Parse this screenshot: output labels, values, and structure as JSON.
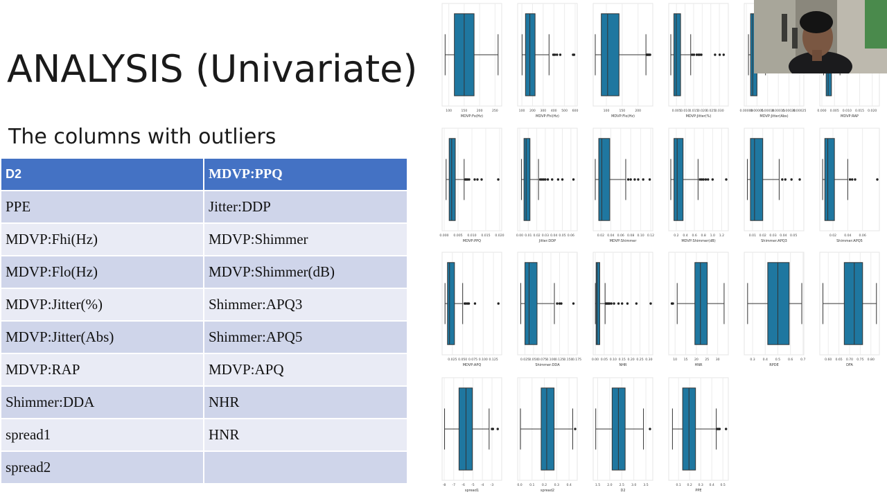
{
  "slide": {
    "title": "ANALYSIS (Univariate)",
    "subtitle": "The columns with outliers"
  },
  "table": {
    "headers": [
      "D2",
      "MDVP:PPQ"
    ],
    "rows": [
      [
        "PPE",
        "Jitter:DDP"
      ],
      [
        "MDVP:Fhi(Hz)",
        "MDVP:Shimmer"
      ],
      [
        "MDVP:Flo(Hz)",
        "MDVP:Shimmer(dB)"
      ],
      [
        "MDVP:Jitter(%)",
        "Shimmer:APQ3"
      ],
      [
        "MDVP:Jitter(Abs)",
        "Shimmer:APQ5"
      ],
      [
        "MDVP:RAP",
        "MDVP:APQ"
      ],
      [
        "Shimmer:DDA",
        "NHR"
      ],
      [
        "spread1",
        "HNR"
      ],
      [
        "spread2",
        ""
      ]
    ]
  },
  "colors": {
    "header_bg": "#4472c4",
    "row_odd": "#cfd5ea",
    "row_even": "#e9ebf5",
    "box_fill": "#1f77a0"
  },
  "chart_data": {
    "type": "boxplot-grid",
    "plots": [
      {
        "label": "MDVP:Fo(Hz)",
        "ticks": [
          "100",
          "150",
          "200",
          "250"
        ],
        "range": [
          85,
          265
        ],
        "q1": 118,
        "med": 150,
        "q3": 182,
        "wlo": 88,
        "whi": 260,
        "outliers": []
      },
      {
        "label": "MDVP:Fhi(Hz)",
        "ticks": [
          "100",
          "200",
          "300",
          "400",
          "500",
          "600"
        ],
        "range": [
          80,
          600
        ],
        "q1": 134,
        "med": 175,
        "q3": 224,
        "wlo": 102,
        "whi": 355,
        "outliers": [
          395,
          410,
          430,
          460,
          580,
          590
        ]
      },
      {
        "label": "MDVP:Flo(Hz)",
        "ticks": [
          "100",
          "150",
          "200"
        ],
        "range": [
          65,
          240
        ],
        "q1": 84,
        "med": 104,
        "q3": 140,
        "wlo": 65,
        "whi": 225,
        "outliers": [
          228,
          230,
          232,
          235,
          238
        ]
      },
      {
        "label": "MDVP:Jitter(%)",
        "ticks": [
          "0.005",
          "0.010",
          "0.015",
          "0.020",
          "0.025",
          "0.030"
        ],
        "range": [
          0.0017,
          0.034
        ],
        "q1": 0.0035,
        "med": 0.0049,
        "q3": 0.0074,
        "wlo": 0.0017,
        "whi": 0.0133,
        "outliers": [
          0.0141,
          0.0152,
          0.0168,
          0.0178,
          0.0185,
          0.0195,
          0.0275,
          0.0302,
          0.0325
        ]
      },
      {
        "label": "MDVP:Jitter(Abs)",
        "ticks": [
          "0.00000",
          "0.00005",
          "0.00010",
          "0.00015",
          "0.00020",
          "0.00025"
        ],
        "range": [
          0,
          0.00026
        ],
        "q1": 2e-05,
        "med": 3e-05,
        "q3": 5e-05,
        "wlo": 1e-05,
        "whi": 9e-05,
        "outliers": [
          0.00011,
          0.00014
        ]
      },
      {
        "label": "MDVP:RAP",
        "ticks": [
          "0.000",
          "0.005",
          "0.010",
          "0.015",
          "0.020"
        ],
        "range": [
          0,
          0.022
        ],
        "q1": 0.0017,
        "med": 0.0025,
        "q3": 0.0038,
        "wlo": 0.0007,
        "whi": 0.0072,
        "outliers": [
          0.0085,
          0.0095,
          0.011
        ]
      },
      {
        "label": "MDVP:PPQ",
        "ticks": [
          "0.000",
          "0.005",
          "0.010",
          "0.015",
          "0.020"
        ],
        "range": [
          0,
          0.02
        ],
        "q1": 0.0018,
        "med": 0.0027,
        "q3": 0.004,
        "wlo": 0.0007,
        "whi": 0.0072,
        "outliers": [
          0.0076,
          0.008,
          0.0084,
          0.009,
          0.011,
          0.012,
          0.0135,
          0.0195
        ]
      },
      {
        "label": "Jitter:DDP",
        "ticks": [
          "0.00",
          "0.01",
          "0.02",
          "0.03",
          "0.04",
          "0.05",
          "0.06"
        ],
        "range": [
          0,
          0.065
        ],
        "q1": 0.005,
        "med": 0.0075,
        "q3": 0.012,
        "wlo": 0.002,
        "whi": 0.022,
        "outliers": [
          0.024,
          0.026,
          0.028,
          0.03,
          0.033,
          0.038,
          0.045,
          0.05,
          0.063
        ]
      },
      {
        "label": "MDVP:Shimmer",
        "ticks": [
          "0.02",
          "0.04",
          "0.06",
          "0.08",
          "0.10",
          "0.12"
        ],
        "range": [
          0.009,
          0.12
        ],
        "q1": 0.016,
        "med": 0.022,
        "q3": 0.038,
        "wlo": 0.009,
        "whi": 0.07,
        "outliers": [
          0.075,
          0.08,
          0.088,
          0.095,
          0.105,
          0.118
        ]
      },
      {
        "label": "MDVP:Shimmer(dB)",
        "ticks": [
          "0.2",
          "0.4",
          "0.6",
          "0.8",
          "1.0",
          "1.2"
        ],
        "range": [
          0.08,
          1.3
        ],
        "q1": 0.15,
        "med": 0.22,
        "q3": 0.35,
        "wlo": 0.08,
        "whi": 0.68,
        "outliers": [
          0.72,
          0.76,
          0.8,
          0.85,
          0.9,
          1.0,
          1.3
        ]
      },
      {
        "label": "Shimmer:APQ3",
        "ticks": [
          "0.01",
          "0.02",
          "0.03",
          "0.04",
          "0.05"
        ],
        "range": [
          0.004,
          0.058
        ],
        "q1": 0.008,
        "med": 0.012,
        "q3": 0.02,
        "wlo": 0.005,
        "whi": 0.036,
        "outliers": [
          0.039,
          0.042,
          0.048,
          0.056
        ]
      },
      {
        "label": "Shimmer:APQ5",
        "ticks": [
          "0.02",
          "0.04",
          "0.06"
        ],
        "range": [
          0.005,
          0.08
        ],
        "q1": 0.009,
        "med": 0.013,
        "q3": 0.022,
        "wlo": 0.006,
        "whi": 0.04,
        "outliers": [
          0.043,
          0.046,
          0.05,
          0.08
        ]
      },
      {
        "label": "MDVP:APQ",
        "ticks": [
          "0.025",
          "0.050",
          "0.075",
          "0.100",
          "0.125"
        ],
        "range": [
          0.005,
          0.14
        ],
        "q1": 0.013,
        "med": 0.018,
        "q3": 0.03,
        "wlo": 0.007,
        "whi": 0.05,
        "outliers": [
          0.055,
          0.058,
          0.062,
          0.065,
          0.08,
          0.137
        ]
      },
      {
        "label": "Shimmer:DDA",
        "ticks": [
          "0.025",
          "0.050",
          "0.075",
          "0.100",
          "0.125",
          "0.150",
          "0.175"
        ],
        "range": [
          0.01,
          0.17
        ],
        "q1": 0.025,
        "med": 0.037,
        "q3": 0.06,
        "wlo": 0.013,
        "whi": 0.11,
        "outliers": [
          0.118,
          0.125,
          0.13,
          0.165
        ]
      },
      {
        "label": "NHR",
        "ticks": [
          "0.00",
          "0.05",
          "0.10",
          "0.15",
          "0.20",
          "0.25",
          "0.30"
        ],
        "range": [
          0,
          0.31
        ],
        "q1": 0.005,
        "med": 0.011,
        "q3": 0.025,
        "wlo": 0.0007,
        "whi": 0.055,
        "outliers": [
          0.06,
          0.065,
          0.07,
          0.075,
          0.08,
          0.09,
          0.105,
          0.13,
          0.15,
          0.18,
          0.23,
          0.31
        ]
      },
      {
        "label": "HNR",
        "ticks": [
          "10",
          "15",
          "20",
          "25",
          "30"
        ],
        "range": [
          8,
          34
        ],
        "q1": 19.3,
        "med": 21.9,
        "q3": 25.1,
        "wlo": 11.0,
        "whi": 33.0,
        "outliers": [
          8.5,
          9.0
        ]
      },
      {
        "label": "RPDE",
        "ticks": [
          "0.3",
          "0.4",
          "0.5",
          "0.6",
          "0.7"
        ],
        "range": [
          0.25,
          0.69
        ],
        "q1": 0.42,
        "med": 0.5,
        "q3": 0.59,
        "wlo": 0.26,
        "whi": 0.69,
        "outliers": []
      },
      {
        "label": "DFA",
        "ticks": [
          "0.60",
          "0.65",
          "0.70",
          "0.75",
          "0.80"
        ],
        "range": [
          0.57,
          0.83
        ],
        "q1": 0.675,
        "med": 0.722,
        "q3": 0.761,
        "wlo": 0.575,
        "whi": 0.826,
        "outliers": []
      },
      {
        "label": "spread1",
        "ticks": [
          "-8",
          "-7",
          "-6",
          "-5",
          "-4",
          "-3"
        ],
        "range": [
          -8,
          -2.2
        ],
        "q1": -6.45,
        "med": -5.72,
        "q3": -5.05,
        "wlo": -7.96,
        "whi": -3.3,
        "outliers": [
          -3.0,
          -2.9,
          -2.4
        ]
      },
      {
        "label": "spread2",
        "ticks": [
          "0.0",
          "0.1",
          "0.2",
          "0.3",
          "0.4"
        ],
        "range": [
          0,
          0.45
        ],
        "q1": 0.174,
        "med": 0.219,
        "q3": 0.279,
        "wlo": 0.006,
        "whi": 0.43,
        "outliers": [
          0.45
        ]
      },
      {
        "label": "D2",
        "ticks": [
          "1.5",
          "2.0",
          "2.5",
          "3.0",
          "3.5"
        ],
        "range": [
          1.4,
          3.7
        ],
        "q1": 2.1,
        "med": 2.36,
        "q3": 2.64,
        "wlo": 1.42,
        "whi": 3.4,
        "outliers": [
          3.67
        ]
      },
      {
        "label": "PPE",
        "ticks": [
          "0.1",
          "0.2",
          "0.3",
          "0.4",
          "0.5"
        ],
        "range": [
          0.03,
          0.53
        ],
        "q1": 0.137,
        "med": 0.194,
        "q3": 0.253,
        "wlo": 0.045,
        "whi": 0.44,
        "outliers": [
          0.45,
          0.46,
          0.47,
          0.528
        ]
      }
    ]
  }
}
